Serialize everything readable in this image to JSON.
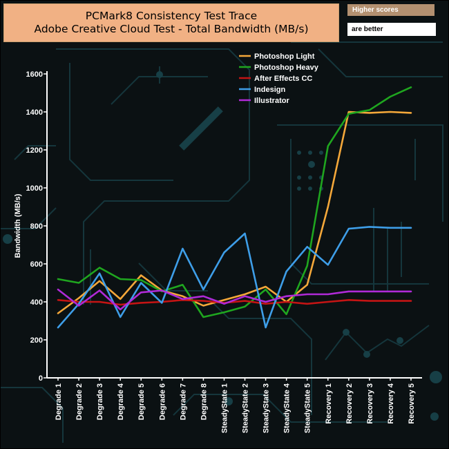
{
  "header": {
    "title_line1": "PCMark8 Consistency Test Trace",
    "title_line2": "Adobe Creative Cloud Test - Total Bandwidth (MB/s)",
    "badge_top": "Higher scores",
    "badge_bottom": "are better"
  },
  "chart_data": {
    "type": "line",
    "title": "PCMark8 Consistency Test Trace - Adobe Creative Cloud Test - Total Bandwidth (MB/s)",
    "xlabel": "",
    "ylabel": "Bandwidth (MB/s)",
    "ylim": [
      0,
      1600
    ],
    "yticks": [
      0,
      200,
      400,
      600,
      800,
      1000,
      1200,
      1400,
      1600
    ],
    "categories": [
      "Degrade 1",
      "Degrade 2",
      "Degrade 3",
      "Degrade 4",
      "Degrade 5",
      "Degrade 6",
      "Degrade 7",
      "Degrade 8",
      "SteadyState 1",
      "SteadyState 2",
      "SteadyState 3",
      "SteadyState 4",
      "SteadyState 5",
      "Recovery 1",
      "Recovery 2",
      "Recovery 3",
      "Recovery 4",
      "Recovery 5"
    ],
    "legend_position": "top-right",
    "series": [
      {
        "name": "Photoshop Light",
        "color": "#f5a83a",
        "values": [
          340,
          420,
          510,
          415,
          540,
          460,
          430,
          380,
          410,
          440,
          480,
          400,
          490,
          900,
          1400,
          1395,
          1400,
          1395
        ]
      },
      {
        "name": " Photoshop Heavy",
        "color": "#1fa61f",
        "values": [
          520,
          500,
          580,
          520,
          515,
          455,
          490,
          320,
          345,
          375,
          465,
          335,
          590,
          1220,
          1390,
          1410,
          1480,
          1530
        ]
      },
      {
        "name": "After Effects CC",
        "color": "#c41414",
        "values": [
          410,
          400,
          400,
          385,
          395,
          400,
          410,
          405,
          395,
          405,
          390,
          400,
          390,
          400,
          410,
          405,
          405,
          405
        ]
      },
      {
        "name": "Indesign",
        "color": "#3e9ee8",
        "values": [
          265,
          390,
          550,
          320,
          500,
          395,
          680,
          465,
          660,
          760,
          265,
          560,
          690,
          595,
          785,
          795,
          790,
          790
        ]
      },
      {
        "name": "Illustrator",
        "color": "#b02ad8",
        "values": [
          465,
          380,
          460,
          360,
          450,
          460,
          415,
          430,
          390,
          430,
          400,
          430,
          440,
          440,
          455,
          455,
          455,
          455
        ]
      }
    ]
  }
}
